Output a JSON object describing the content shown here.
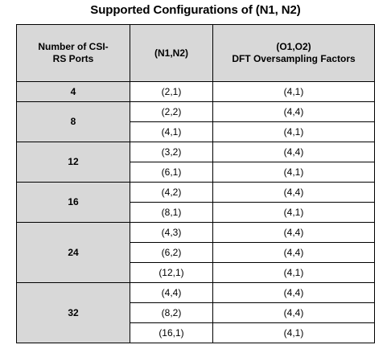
{
  "title": "Supported Configurations of (N1, N2)",
  "table": {
    "headers": {
      "ports": "Number of CSI-RS Ports",
      "n": "(N1,N2)",
      "o_line1": "(O1,O2)",
      "o_line2": "DFT Oversampling Factors"
    },
    "groups": [
      {
        "ports": "4",
        "rows": [
          {
            "n": "(2,1)",
            "o": "(4,1)"
          }
        ]
      },
      {
        "ports": "8",
        "rows": [
          {
            "n": "(2,2)",
            "o": "(4,4)"
          },
          {
            "n": "(4,1)",
            "o": "(4,1)"
          }
        ]
      },
      {
        "ports": "12",
        "rows": [
          {
            "n": "(3,2)",
            "o": "(4,4)"
          },
          {
            "n": "(6,1)",
            "o": "(4,1)"
          }
        ]
      },
      {
        "ports": "16",
        "rows": [
          {
            "n": "(4,2)",
            "o": "(4,4)"
          },
          {
            "n": "(8,1)",
            "o": "(4,1)"
          }
        ]
      },
      {
        "ports": "24",
        "rows": [
          {
            "n": "(4,3)",
            "o": "(4,4)"
          },
          {
            "n": "(6,2)",
            "o": "(4,4)"
          },
          {
            "n": "(12,1)",
            "o": "(4,1)"
          }
        ]
      },
      {
        "ports": "32",
        "rows": [
          {
            "n": "(4,4)",
            "o": "(4,4)"
          },
          {
            "n": "(8,2)",
            "o": "(4,4)"
          },
          {
            "n": "(16,1)",
            "o": "(4,1)"
          }
        ]
      }
    ]
  }
}
